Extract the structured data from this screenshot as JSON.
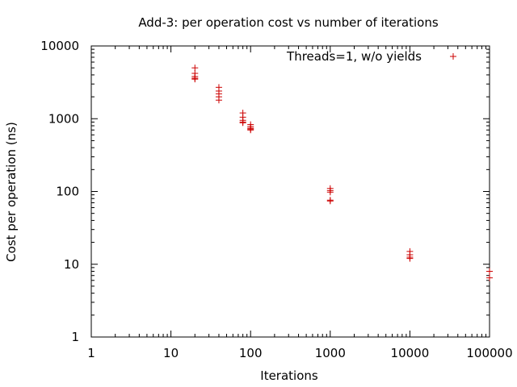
{
  "chart_data": {
    "type": "scatter",
    "title": "Add-3: per operation cost vs number of iterations",
    "xlabel": "Iterations",
    "ylabel": "Cost per operation (ns)",
    "xscale": "log",
    "yscale": "log",
    "xlim": [
      1,
      100000
    ],
    "ylim": [
      1,
      10000
    ],
    "xticks": [
      "1",
      "10",
      "100",
      "1000",
      "10000",
      "100000"
    ],
    "yticks": [
      "1",
      "10",
      "100",
      "1000",
      "10000"
    ],
    "grid": false,
    "legend_position": "top-right",
    "series": [
      {
        "name": "Threads=1, w/o yields",
        "color": "#cc0000",
        "marker": "plus",
        "points": [
          [
            20,
            5000
          ],
          [
            20,
            4200
          ],
          [
            20,
            3800
          ],
          [
            20,
            3600
          ],
          [
            20,
            3500
          ],
          [
            40,
            2700
          ],
          [
            40,
            2400
          ],
          [
            40,
            2200
          ],
          [
            40,
            2000
          ],
          [
            40,
            1800
          ],
          [
            80,
            1200
          ],
          [
            80,
            1050
          ],
          [
            80,
            950
          ],
          [
            80,
            900
          ],
          [
            80,
            880
          ],
          [
            100,
            830
          ],
          [
            100,
            780
          ],
          [
            100,
            740
          ],
          [
            100,
            720
          ],
          [
            100,
            700
          ],
          [
            1000,
            110
          ],
          [
            1000,
            103
          ],
          [
            1000,
            98
          ],
          [
            1000,
            76
          ],
          [
            1000,
            74
          ],
          [
            10000,
            15
          ],
          [
            10000,
            13.5
          ],
          [
            10000,
            12.5
          ],
          [
            10000,
            12
          ],
          [
            100000,
            8
          ],
          [
            100000,
            6.5
          ]
        ]
      }
    ]
  }
}
